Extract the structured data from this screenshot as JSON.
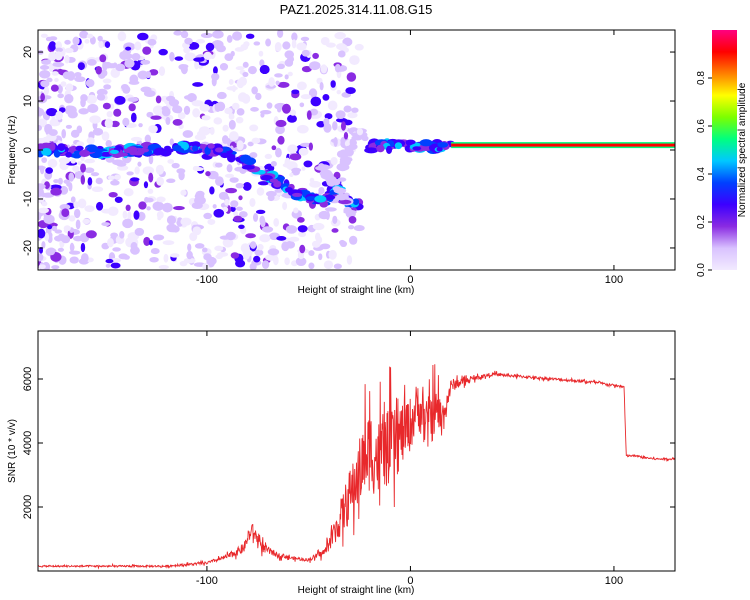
{
  "colors": {
    "axis": "#000000",
    "snr_line": "#e8282b",
    "colormap": [
      "#f2eaff",
      "#d9c2ff",
      "#8a2be2",
      "#3c00ff",
      "#0040ff",
      "#00c8ff",
      "#00ff80",
      "#7cff00",
      "#ffff00",
      "#ff8000",
      "#ff0000",
      "#ff0080"
    ]
  },
  "chart_data": [
    {
      "type": "heatmap",
      "title": "PAZ1.2025.314.11.08.G15",
      "xlabel": "Height of straight line (km)",
      "ylabel": "Frequency (Hz)",
      "xlim": [
        -183,
        130
      ],
      "ylim": [
        -24.5,
        24.5
      ],
      "x_ticks": [
        -100,
        0,
        100
      ],
      "x_tick_labels": [
        "-100",
        "0",
        "100"
      ],
      "y_ticks": [
        -20,
        -10,
        0,
        10,
        20
      ],
      "y_tick_labels": [
        "-20",
        "-10",
        "0",
        "10",
        "20"
      ],
      "colorbar": {
        "label": "Normalized spectral amplitude",
        "range": [
          0,
          1
        ],
        "ticks": [
          0.0,
          0.2,
          0.4,
          0.6,
          0.8
        ],
        "tick_labels": [
          "0.0",
          "0.2",
          "0.4",
          "0.6",
          "0.8"
        ]
      },
      "features": [
        {
          "name": "noise",
          "x_range": [
            -183,
            -25
          ],
          "freq_range": [
            -24,
            24
          ],
          "amplitude": 0.08
        },
        {
          "name": "descending ridge",
          "x": [
            -183,
            -160,
            -130,
            -105,
            -95,
            -85,
            -75,
            -65,
            -58,
            -50,
            -42,
            -35,
            -30,
            -25
          ],
          "freq": [
            0.2,
            -0.5,
            0,
            0.5,
            0,
            -1.5,
            -4,
            -6.5,
            -8.5,
            -10,
            -10.3,
            -8,
            -11,
            -11.5
          ],
          "amplitude": 0.35
        },
        {
          "name": "secondary arc",
          "x": [
            -45,
            -35,
            -28
          ],
          "freq": [
            -3,
            -8,
            -14
          ],
          "amplitude": 0.12
        },
        {
          "name": "jump",
          "x": [
            -35,
            -30,
            -25,
            -22
          ],
          "freq": [
            -5,
            0,
            4,
            3
          ],
          "amplitude": 0.1
        },
        {
          "name": "onset patches",
          "x": [
            -20,
            -15,
            -10,
            -5,
            0,
            5,
            10,
            15,
            20
          ],
          "freq": [
            0.5,
            1,
            0.8,
            1.5,
            1,
            0.6,
            0.9,
            0.5,
            0.8
          ],
          "amplitude": 0.35
        },
        {
          "name": "carrier line",
          "x_range": [
            20,
            130
          ],
          "freq": 1,
          "amplitude": 0.9
        }
      ]
    },
    {
      "type": "line",
      "title": "",
      "xlabel": "Height of straight line (km)",
      "ylabel": "SNR (10 * v/v)",
      "xlim": [
        -183,
        130
      ],
      "ylim": [
        0,
        7500
      ],
      "x_ticks": [
        -100,
        0,
        100
      ],
      "x_tick_labels": [
        "-100",
        "0",
        "100"
      ],
      "y_ticks": [
        2000,
        4000,
        6000
      ],
      "y_tick_labels": [
        "2000",
        "4000",
        "6000"
      ],
      "series": [
        {
          "name": "SNR",
          "x": [
            -183,
            -120,
            -100,
            -90,
            -82,
            -78,
            -72,
            -65,
            -58,
            -50,
            -42,
            -36,
            -32,
            -28,
            -24,
            -20,
            -16,
            -12,
            -8,
            -4,
            0,
            4,
            8,
            12,
            16,
            20,
            30,
            40,
            50,
            70,
            90,
            105,
            106,
            110,
            120,
            130
          ],
          "y": [
            150,
            150,
            250,
            450,
            700,
            1300,
            700,
            500,
            400,
            350,
            600,
            1400,
            2000,
            2600,
            3300,
            3800,
            3500,
            3800,
            3900,
            4300,
            4600,
            5200,
            4500,
            5000,
            4800,
            5800,
            6000,
            6150,
            6100,
            6000,
            5900,
            5750,
            3600,
            3600,
            3500,
            3500
          ],
          "spread": [
            50,
            60,
            80,
            150,
            300,
            450,
            300,
            150,
            100,
            100,
            250,
            900,
            1500,
            1800,
            2200,
            2600,
            2500,
            2400,
            2300,
            2000,
            1700,
            1600,
            1800,
            1500,
            1100,
            400,
            130,
            110,
            90,
            80,
            80,
            80,
            70,
            60,
            60,
            60
          ]
        }
      ]
    }
  ]
}
